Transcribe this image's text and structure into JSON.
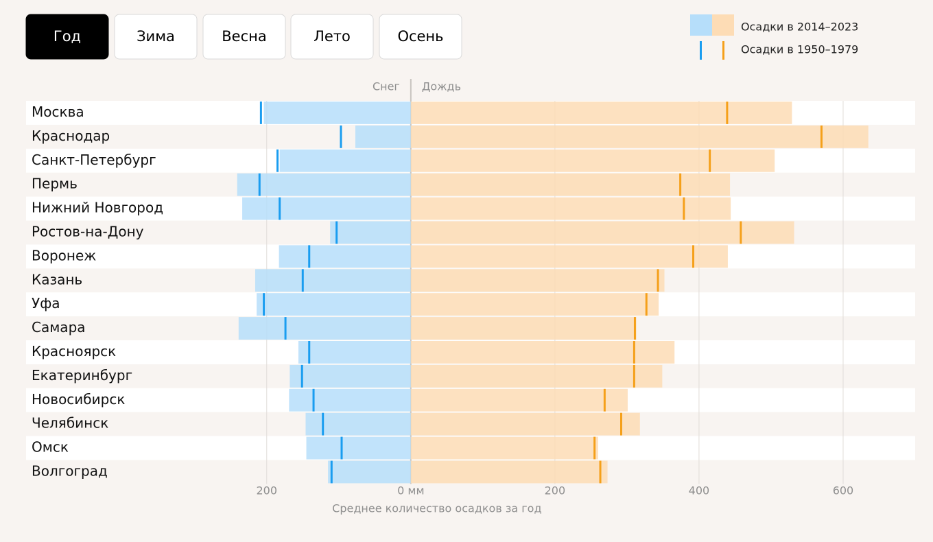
{
  "buttons": [
    "Год",
    "Зима",
    "Весна",
    "Лето",
    "Осень"
  ],
  "active_button": 0,
  "chart_data": {
    "type": "diverging_bar",
    "legend": {
      "current": "Осадки в 2014–2023",
      "past": "Осадки в 1950–1979"
    },
    "categories": [
      "Москва",
      "Краснодар",
      "Санкт-Петербург",
      "Пермь",
      "Нижний Новгород",
      "Ростов-на-Дону",
      "Воронеж",
      "Казань",
      "Уфа",
      "Самара",
      "Красноярск",
      "Екатеринбург",
      "Новосибирск",
      "Челябинск",
      "Омск",
      "Волгоград"
    ],
    "series": [
      {
        "name": "Снег",
        "side": "left",
        "color": "#b6defa",
        "marker_color": "#1a9df0",
        "values": [
          204,
          77,
          182,
          241,
          234,
          112,
          183,
          216,
          214,
          239,
          156,
          168,
          169,
          146,
          145,
          115
        ],
        "past_values": [
          208,
          97,
          185,
          210,
          182,
          103,
          141,
          150,
          204,
          174,
          141,
          151,
          135,
          122,
          96,
          110
        ]
      },
      {
        "name": "Дождь",
        "side": "right",
        "color": "#fddcb5",
        "marker_color": "#f5a01a",
        "values": [
          529,
          635,
          505,
          443,
          444,
          532,
          440,
          352,
          344,
          313,
          366,
          349,
          301,
          318,
          260,
          273
        ],
        "past_values": [
          439,
          570,
          415,
          374,
          379,
          458,
          392,
          343,
          327,
          311,
          310,
          310,
          269,
          292,
          255,
          263
        ]
      }
    ],
    "xlabel": "Среднее количество осадков за год",
    "xlim": [
      -534,
      700
    ],
    "xticks": [
      {
        "value": -200,
        "label": "200"
      },
      {
        "value": 0,
        "label": "0 мм"
      },
      200,
      400,
      600
    ],
    "grid": true
  }
}
